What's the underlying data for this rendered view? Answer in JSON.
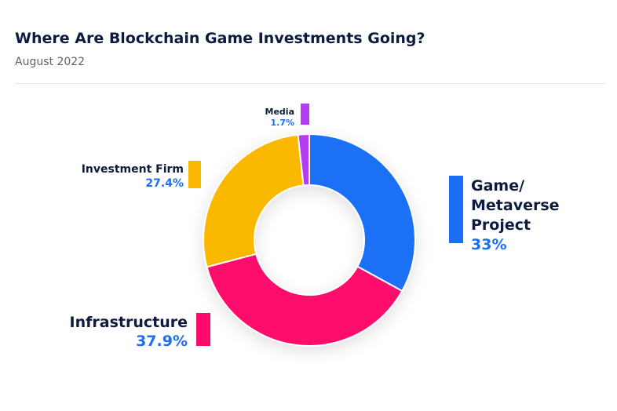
{
  "header": {
    "title": "Where Are Blockchain Game Investments Going?",
    "subtitle": "August 2022"
  },
  "chart_data": {
    "type": "pie",
    "donut": true,
    "title": "Where Are Blockchain Game Investments Going?",
    "subtitle": "August 2022",
    "value_unit": "%",
    "value_color": "#1a6ff5",
    "legend": "none",
    "slices": [
      {
        "label": [
          "Game/",
          "Metaverse",
          "Project"
        ],
        "value": 33,
        "value_label": "33%",
        "color": "#1a6ff5"
      },
      {
        "label": [
          "Infrastructure"
        ],
        "value": 37.9,
        "value_label": "37.9%",
        "color": "#ff0a6c"
      },
      {
        "label": [
          "Investment Firm"
        ],
        "value": 27.4,
        "value_label": "27.4%",
        "color": "#fbb800"
      },
      {
        "label": [
          "Media"
        ],
        "value": 1.7,
        "value_label": "1.7%",
        "color": "#b43cf2"
      }
    ]
  }
}
